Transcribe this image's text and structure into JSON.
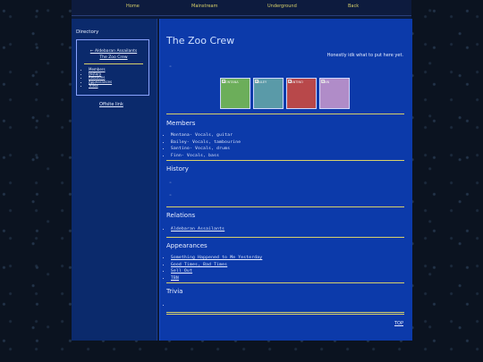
{
  "nav": {
    "items": [
      {
        "label": "Home"
      },
      {
        "label": "Mainstream"
      },
      {
        "label": "Underground"
      },
      {
        "label": "Back"
      }
    ]
  },
  "sidebar": {
    "title": "Directory",
    "back_link": "← Aldebaran Assailants",
    "current": "The Zoo Crew",
    "links": [
      "Members",
      "History",
      "Relations",
      "Appearances",
      "Trivia"
    ],
    "offsite": "Offsite link"
  },
  "main": {
    "title": "The Zoo Crew",
    "tagline": "Honestly idk what to put here yet.",
    "images": [
      {
        "label": "MONTANA",
        "color": "#6cae5a"
      },
      {
        "label": "BAILEY",
        "color": "#5a9aa8"
      },
      {
        "label": "SANTINO",
        "color": "#b8484a"
      },
      {
        "label": "FINN",
        "color": "#b08cc8"
      }
    ],
    "members": {
      "title": "Members",
      "items": [
        "Montana- Vocals, guitar",
        "Bailey- Vocals, tambourine",
        "Santino- Vocals, drums",
        "Finn- Vocals, bass"
      ]
    },
    "history": {
      "title": "History"
    },
    "relations": {
      "title": "Relations",
      "items": [
        "Aldebaran Assailants"
      ]
    },
    "appearances": {
      "title": "Appearances",
      "items": [
        "Something Happened to Me Yesterday",
        "Good Times, Bad Times",
        "Sell Out",
        "TBN"
      ]
    },
    "trivia": {
      "title": "Trivia"
    },
    "top_link": "TOP"
  }
}
